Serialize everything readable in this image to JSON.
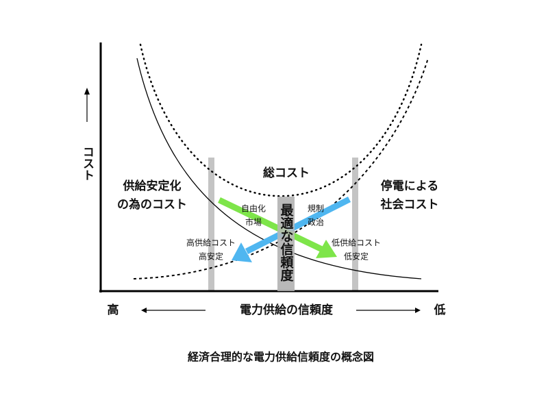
{
  "axis": {
    "y_label": "コスト",
    "x_label": "電力供給の信頼度",
    "x_left": "高",
    "x_right": "低"
  },
  "curves": {
    "supply_cost": [
      "供給安定化",
      "の為のコスト"
    ],
    "total_cost": "総コスト",
    "outage_cost": [
      "停電による",
      "社会コスト"
    ]
  },
  "optimal": "最適な信頼度",
  "arrows": {
    "green_label": [
      "自由化",
      "市場"
    ],
    "blue_label": [
      "規制",
      "政治"
    ]
  },
  "ends": {
    "high": [
      "高供給コスト",
      "高安定"
    ],
    "low": [
      "低供給コスト",
      "低安定"
    ]
  },
  "caption": "経済合理的な電力供給信頼度の概念図"
}
